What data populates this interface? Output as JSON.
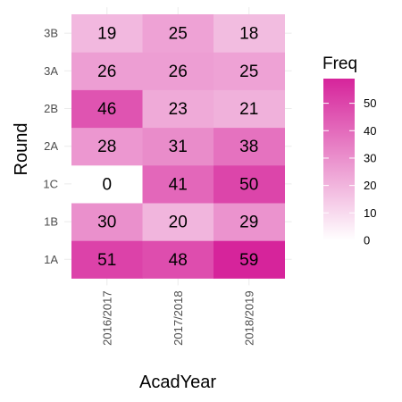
{
  "chart_data": {
    "type": "heatmap",
    "xlabel": "AcadYear",
    "ylabel": "Round",
    "x_categories": [
      "2016/2017",
      "2017/2018",
      "2018/2019"
    ],
    "y_categories": [
      "1A",
      "1B",
      "1C",
      "2A",
      "2B",
      "3A",
      "3B"
    ],
    "values": [
      [
        51,
        48,
        59
      ],
      [
        30,
        20,
        29
      ],
      [
        0,
        41,
        50
      ],
      [
        28,
        31,
        38
      ],
      [
        46,
        23,
        21
      ],
      [
        26,
        26,
        25
      ],
      [
        19,
        25,
        18
      ]
    ],
    "legend": {
      "title": "Freq",
      "ticks": [
        0,
        10,
        20,
        30,
        40,
        50
      ],
      "range": [
        0,
        59
      ],
      "color_low": "#ffffff",
      "color_high": "#d6249b",
      "placement": "right"
    },
    "grid": true
  }
}
